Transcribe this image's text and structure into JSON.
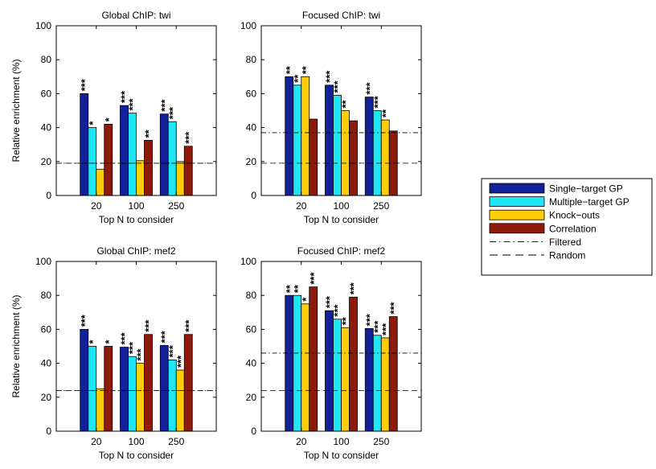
{
  "chart_data": [
    {
      "type": "bar",
      "title": "Global ChIP: twi",
      "xlabel": "Top N to consider",
      "ylabel": "Relative enrichment (%)",
      "ylim": [
        0,
        100
      ],
      "yticks": [
        "0",
        "20",
        "40",
        "60",
        "80",
        "100"
      ],
      "categories": [
        "20",
        "100",
        "250"
      ],
      "series": [
        {
          "name": "Single−target GP",
          "values": [
            60,
            53,
            48
          ],
          "stars": [
            "***",
            "***",
            "***"
          ]
        },
        {
          "name": "Multiple−target GP",
          "values": [
            40,
            48.5,
            43.5
          ],
          "stars": [
            "*",
            "***",
            "***"
          ]
        },
        {
          "name": "Knock−outs",
          "values": [
            15.5,
            20.5,
            20
          ],
          "stars": [
            "",
            "",
            ""
          ]
        },
        {
          "name": "Correlation",
          "values": [
            42,
            32.5,
            29
          ],
          "stars": [
            "*",
            "**",
            "***"
          ]
        }
      ],
      "reference_lines": {
        "filtered": 19,
        "random": 19
      },
      "grid": false
    },
    {
      "type": "bar",
      "title": "Focused ChIP: twi",
      "xlabel": "Top N to consider",
      "ylabel": "",
      "ylim": [
        0,
        100
      ],
      "yticks": [
        "0",
        "20",
        "40",
        "60",
        "80",
        "100"
      ],
      "categories": [
        "20",
        "100",
        "250"
      ],
      "series": [
        {
          "name": "Single−target GP",
          "values": [
            70,
            65,
            58
          ],
          "stars": [
            "**",
            "***",
            "***"
          ]
        },
        {
          "name": "Multiple−target GP",
          "values": [
            65,
            59,
            50
          ],
          "stars": [
            "**",
            "***",
            "***"
          ]
        },
        {
          "name": "Knock−outs",
          "values": [
            70,
            50,
            44.5
          ],
          "stars": [
            "**",
            "**",
            "**"
          ]
        },
        {
          "name": "Correlation",
          "values": [
            45,
            44,
            38
          ],
          "stars": [
            "",
            "",
            ""
          ]
        }
      ],
      "reference_lines": {
        "filtered": 37,
        "random": 19
      },
      "grid": false
    },
    {
      "type": "bar",
      "title": "Global ChIP: mef2",
      "xlabel": "Top N to consider",
      "ylabel": "Relative enrichment (%)",
      "ylim": [
        0,
        100
      ],
      "yticks": [
        "0",
        "20",
        "40",
        "60",
        "80",
        "100"
      ],
      "categories": [
        "20",
        "100",
        "250"
      ],
      "series": [
        {
          "name": "Single−target GP",
          "values": [
            60,
            49.5,
            50.5
          ],
          "stars": [
            "***",
            "***",
            "***"
          ]
        },
        {
          "name": "Multiple−target GP",
          "values": [
            50,
            44,
            42
          ],
          "stars": [
            "*",
            "***",
            "***"
          ]
        },
        {
          "name": "Knock−outs",
          "values": [
            25,
            40,
            36
          ],
          "stars": [
            "",
            "***",
            "***"
          ]
        },
        {
          "name": "Correlation",
          "values": [
            50,
            57,
            57
          ],
          "stars": [
            "*",
            "***",
            "***"
          ]
        }
      ],
      "reference_lines": {
        "filtered": 24,
        "random": 24
      },
      "grid": false
    },
    {
      "type": "bar",
      "title": "Focused ChIP: mef2",
      "xlabel": "Top N to consider",
      "ylabel": "",
      "ylim": [
        0,
        100
      ],
      "yticks": [
        "0",
        "20",
        "40",
        "60",
        "80",
        "100"
      ],
      "categories": [
        "20",
        "100",
        "250"
      ],
      "series": [
        {
          "name": "Single−target GP",
          "values": [
            80,
            71,
            60.5
          ],
          "stars": [
            "**",
            "***",
            "***"
          ]
        },
        {
          "name": "Multiple−target GP",
          "values": [
            80,
            66,
            56.5
          ],
          "stars": [
            "**",
            "***",
            "***"
          ]
        },
        {
          "name": "Knock−outs",
          "values": [
            75,
            61,
            55
          ],
          "stars": [
            "*",
            "**",
            "***"
          ]
        },
        {
          "name": "Correlation",
          "values": [
            85,
            79,
            67.5
          ],
          "stars": [
            "***",
            "***",
            "***"
          ]
        }
      ],
      "reference_lines": {
        "filtered": 46,
        "random": 24
      },
      "grid": false
    }
  ],
  "legend": {
    "placement": "right",
    "entries": [
      {
        "label": "Single−target GP",
        "kind": "bar",
        "color": "#12209a"
      },
      {
        "label": "Multiple−target GP",
        "kind": "bar",
        "color": "#1fe6f5"
      },
      {
        "label": "Knock−outs",
        "kind": "bar",
        "color": "#ffcc0a"
      },
      {
        "label": "Correlation",
        "kind": "bar",
        "color": "#8e1a0c"
      },
      {
        "label": "Filtered",
        "kind": "line",
        "style": "dash-dot"
      },
      {
        "label": "Random",
        "kind": "line",
        "style": "dashed"
      }
    ]
  },
  "colors": {
    "single_target_gp": "#12209a",
    "multiple_target_gp": "#1fe6f5",
    "knock_outs": "#ffcc0a",
    "correlation": "#8e1a0c",
    "axis": "#000000"
  }
}
